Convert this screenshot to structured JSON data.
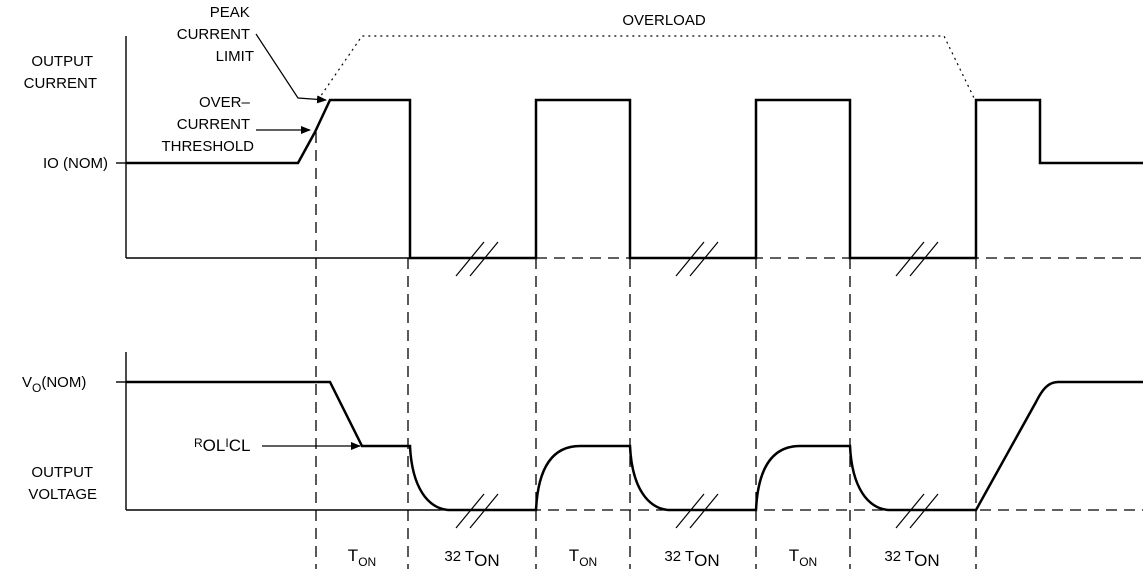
{
  "labels": {
    "peak": [
      "PEAK",
      "CURRENT",
      "LIMIT"
    ],
    "overload": "OVERLOAD",
    "output_current": [
      "OUTPUT",
      "CURRENT"
    ],
    "overcurrent": [
      "OVER–",
      "CURRENT",
      "THRESHOLD"
    ],
    "io_nom": "IO (NOM)",
    "vo_main": "V",
    "vo_sub": "O",
    "vo_tail": "(NOM)",
    "rol_r": "R",
    "rol_ol": "OL",
    "rol_i": "I",
    "rol_cl": "CL",
    "output_voltage": [
      "OUTPUT",
      "VOLTAGE"
    ]
  },
  "timing": {
    "t_main": "T",
    "on_sub": "ON",
    "prefix_32": "32 T"
  }
}
